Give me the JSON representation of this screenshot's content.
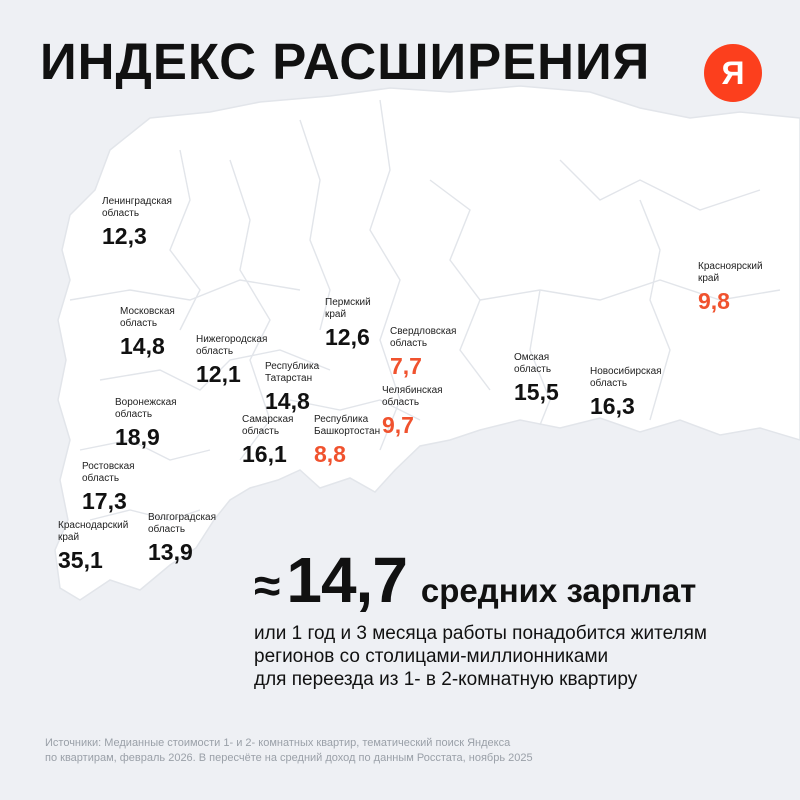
{
  "title": "ИНДЕКС РАСШИРЕНИЯ",
  "logo": "Я",
  "colors": {
    "accent": "#f0522e",
    "logo": "#fc3f1d",
    "text": "#111111",
    "land": "#ffffff",
    "borders": "#e2e5ea"
  },
  "regions": [
    {
      "name": "Ленинградская\nобласть",
      "value": "12,3",
      "accent": false
    },
    {
      "name": "Московская\nобласть",
      "value": "14,8",
      "accent": false
    },
    {
      "name": "Нижегородская\nобласть",
      "value": "12,1",
      "accent": false
    },
    {
      "name": "Пермский\nкрай",
      "value": "12,6",
      "accent": false
    },
    {
      "name": "Свердловская\nобласть",
      "value": "7,7",
      "accent": true
    },
    {
      "name": "Республика\nТатарстан",
      "value": "14,8",
      "accent": false
    },
    {
      "name": "Воронежская\nобласть",
      "value": "18,9",
      "accent": false
    },
    {
      "name": "Самарская\nобласть",
      "value": "16,1",
      "accent": false
    },
    {
      "name": "Республика\nБашкортостан",
      "value": "8,8",
      "accent": true
    },
    {
      "name": "Челябинская\nобласть",
      "value": "9,7",
      "accent": true
    },
    {
      "name": "Омская\nобласть",
      "value": "15,5",
      "accent": false
    },
    {
      "name": "Новосибирская\nобласть",
      "value": "16,3",
      "accent": false
    },
    {
      "name": "Красноярский\nкрай",
      "value": "9,8",
      "accent": true
    },
    {
      "name": "Ростовская\nобласть",
      "value": "17,3",
      "accent": false
    },
    {
      "name": "Краснодарский\nкрай",
      "value": "35,1",
      "accent": false
    },
    {
      "name": "Волгоградская\nобласть",
      "value": "13,9",
      "accent": false
    }
  ],
  "stat": {
    "approx": "≈",
    "value": "14,7",
    "unit": "средних зарплат"
  },
  "description": [
    "или 1 год и 3 месяца работы понадобится жителям",
    "регионов со столицами-миллионниками",
    "для переезда из 1- в 2-комнатную квартиру"
  ],
  "sources": [
    "Источники: Медианные стоимости 1- и 2- комнатных квартир, тематический поиск Яндекса",
    "по квартирам, февраль 2026. В пересчёте на средний доход по данным Росстата, ноябрь 2025"
  ]
}
